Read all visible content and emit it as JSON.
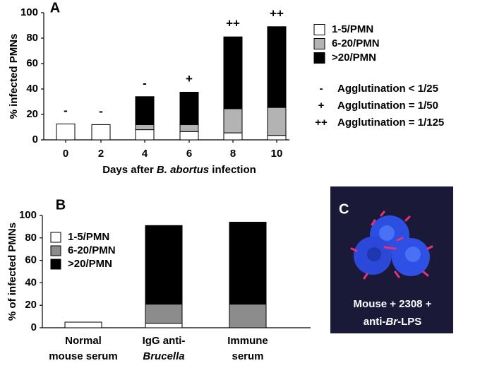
{
  "chart_data": [
    {
      "type": "bar",
      "stacked": true,
      "panel": "A",
      "y_label": "% infected PMNs",
      "x_label_parts": [
        "Days after ",
        "B. abortus",
        " infection"
      ],
      "categories": [
        "0",
        "2",
        "4",
        "6",
        "8",
        "10"
      ],
      "series": [
        {
          "name": "1-5/PMN",
          "color": "#ffffff",
          "values": [
            12.5,
            12,
            8,
            6.5,
            5.5,
            3.5
          ]
        },
        {
          "name": "6-20/PMN",
          "color": "#b3b3b3",
          "values": [
            0,
            0,
            4,
            5.5,
            19,
            22
          ]
        },
        {
          "name": ">20/PMN",
          "color": "#000000",
          "values": [
            0,
            0,
            22,
            25.5,
            56.5,
            63.5
          ]
        }
      ],
      "bar_annotations": [
        "-",
        "-",
        "-",
        "+",
        "++",
        "++"
      ],
      "annotation_legend": [
        {
          "symbol": "-",
          "text": "Agglutination < 1/25"
        },
        {
          "symbol": "+",
          "text": "Agglutination = 1/50"
        },
        {
          "symbol": "++",
          "text": "Agglutination = 1/125"
        }
      ],
      "ylim": [
        0,
        100
      ],
      "yticks": [
        0,
        20,
        40,
        60,
        80,
        100
      ]
    },
    {
      "type": "bar",
      "stacked": true,
      "panel": "B",
      "y_label": "% of infected PMNs",
      "categories": [
        [
          "Normal",
          "mouse serum"
        ],
        [
          "IgG anti-",
          "Brucella"
        ],
        [
          "Immune",
          "serum"
        ]
      ],
      "series": [
        {
          "name": "1-5/PMN",
          "color": "#ffffff",
          "values": [
            5,
            4,
            0
          ]
        },
        {
          "name": "6-20/PMN",
          "color": "#8c8c8c",
          "values": [
            0,
            17,
            21
          ]
        },
        {
          "name": ">20/PMN",
          "color": "#000000",
          "values": [
            0,
            70,
            73
          ]
        }
      ],
      "ylim": [
        0,
        100
      ],
      "yticks": [
        0,
        20,
        40,
        60,
        80,
        100
      ]
    }
  ],
  "panel_c": {
    "label": "C",
    "caption_line1": "Mouse + 2308 +",
    "caption_line2_parts": [
      "anti-",
      "Br",
      "-LPS"
    ]
  }
}
